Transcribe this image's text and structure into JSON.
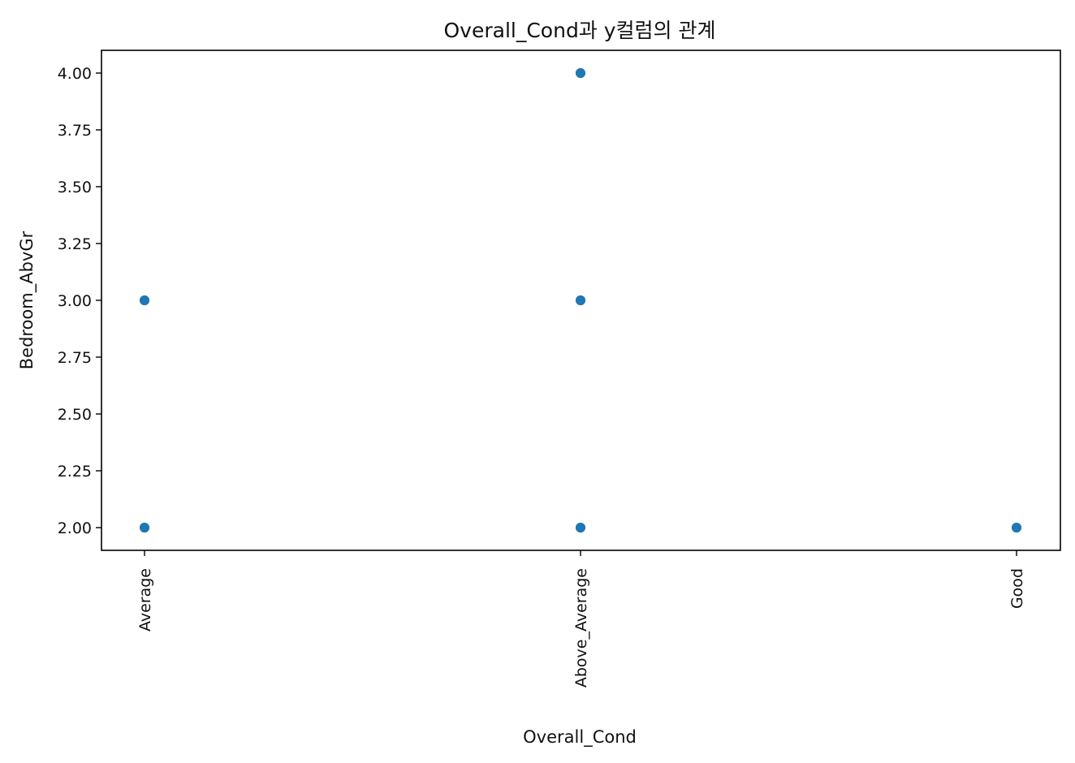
{
  "chart_data": {
    "type": "scatter",
    "title": "Overall_Cond과 y컬럼의 관계",
    "xlabel": "Overall_Cond",
    "ylabel": "Bedroom_AbvGr",
    "categories": [
      "Average",
      "Above_Average",
      "Good"
    ],
    "yticks": [
      "2.00",
      "2.25",
      "2.50",
      "2.75",
      "3.00",
      "3.25",
      "3.50",
      "3.75",
      "4.00"
    ],
    "ylim": [
      1.9,
      4.1
    ],
    "grid": false,
    "marker_color": "#1f77b4",
    "points": [
      {
        "x": "Average",
        "y": 3
      },
      {
        "x": "Average",
        "y": 2
      },
      {
        "x": "Above_Average",
        "y": 4
      },
      {
        "x": "Above_Average",
        "y": 3
      },
      {
        "x": "Above_Average",
        "y": 2
      },
      {
        "x": "Good",
        "y": 2
      }
    ]
  }
}
